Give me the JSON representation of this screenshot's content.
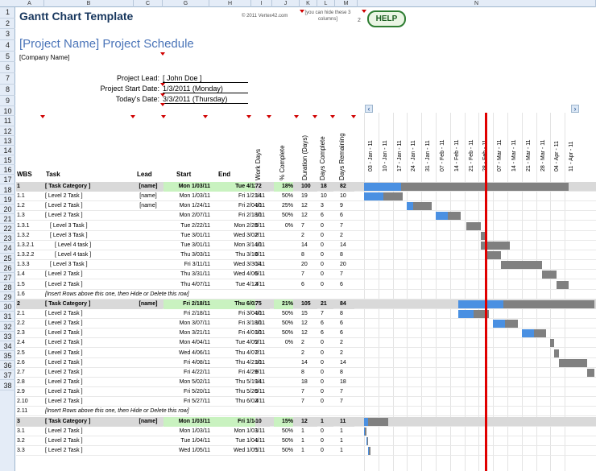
{
  "columns": [
    "A",
    "B",
    "C",
    "G",
    "H",
    "I",
    "J",
    "K",
    "L",
    "M",
    "N"
  ],
  "title": "Gantt Chart Template",
  "copyright": "© 2011 Vertex42.com",
  "hide_note": "[you can hide these 3 columns]",
  "hide_count": "2",
  "help_label": "HELP",
  "project_title": "[Project Name] Project Schedule",
  "company": "[Company Name]",
  "labels": {
    "lead": "Project Lead:",
    "start": "Project Start Date:",
    "today": "Today's Date:"
  },
  "values": {
    "lead": "[ John Doe ]",
    "start": "1/3/2011  (Monday)",
    "today": "3/3/2011  (Thursday)"
  },
  "headers": {
    "wbs": "WBS",
    "task": "Task",
    "lead": "Lead",
    "start": "Start",
    "end": "End",
    "work_days": "Work Days",
    "pct": "% Complete",
    "duration": "Duration (Days)",
    "days_complete": "Days Complete",
    "days_remaining": "Days Remaining"
  },
  "weeks": [
    "03 - Jan - 11",
    "10 - Jan - 11",
    "17 - Jan - 11",
    "24 - Jan - 11",
    "31 - Jan - 11",
    "07 - Feb - 11",
    "14 - Feb - 11",
    "21 - Feb - 11",
    "28 - Feb - 11",
    "07 - Mar - 11",
    "14 - Mar - 11",
    "21 - Mar - 11",
    "28 - Mar - 11",
    "04 - Apr - 11",
    "11 - Apr - 11"
  ],
  "row_numbers": [
    "1",
    "2",
    "3",
    "4",
    "5",
    "6",
    "7",
    "8",
    "9",
    "10",
    "11",
    "12",
    "13",
    "14",
    "15",
    "16",
    "17",
    "18",
    "19",
    "20",
    "21",
    "22",
    "23",
    "24",
    "25",
    "26",
    "27",
    "28",
    "29",
    "30",
    "31",
    "32",
    "33",
    "34",
    "35",
    "36",
    "37",
    "38"
  ],
  "tasks": [
    {
      "wbs": "1",
      "task": "[ Task Category ]",
      "lead": "[name]",
      "start": "Mon 1/03/11",
      "end": "Tue 4/12/11",
      "work": "72",
      "pct": "18%",
      "dur": "100",
      "dc": "18",
      "dr": "82",
      "kind": "cat"
    },
    {
      "wbs": "1.1",
      "task": "[ Level 2 Task ]",
      "lead": "[name]",
      "start": "Mon 1/03/11",
      "end": "Fri 1/21/11",
      "work": "14",
      "pct": "50%",
      "dur": "19",
      "dc": "10",
      "dr": "10",
      "kind": "task"
    },
    {
      "wbs": "1.2",
      "task": "[ Level 2 Task ]",
      "lead": "[name]",
      "start": "Mon 1/24/11",
      "end": "Fri 2/04/11",
      "work": "10",
      "pct": "25%",
      "dur": "12",
      "dc": "3",
      "dr": "9",
      "kind": "task"
    },
    {
      "wbs": "1.3",
      "task": "[ Level 2 Task ]",
      "lead": "",
      "start": "Mon 2/07/11",
      "end": "Fri 2/18/11",
      "work": "10",
      "pct": "50%",
      "dur": "12",
      "dc": "6",
      "dr": "6",
      "kind": "task"
    },
    {
      "wbs": "1.3.1",
      "task": "[ Level 3 Task ]",
      "lead": "",
      "start": "Tue 2/22/11",
      "end": "Mon 2/28/11",
      "work": "5",
      "pct": "0%",
      "dur": "7",
      "dc": "0",
      "dr": "7",
      "kind": "task"
    },
    {
      "wbs": "1.3.2",
      "task": "[ Level 3 Task ]",
      "lead": "",
      "start": "Tue 3/01/11",
      "end": "Wed 3/02/11",
      "work": "2",
      "pct": "",
      "dur": "2",
      "dc": "0",
      "dr": "2",
      "kind": "task"
    },
    {
      "wbs": "1.3.2.1",
      "task": "[ Level 4 task ]",
      "lead": "",
      "start": "Tue 3/01/11",
      "end": "Mon 3/14/11",
      "work": "10",
      "pct": "",
      "dur": "14",
      "dc": "0",
      "dr": "14",
      "kind": "task"
    },
    {
      "wbs": "1.3.2.2",
      "task": "[ Level 4 task ]",
      "lead": "",
      "start": "Thu 3/03/11",
      "end": "Thu 3/10/11",
      "work": "6",
      "pct": "",
      "dur": "8",
      "dc": "0",
      "dr": "8",
      "kind": "task"
    },
    {
      "wbs": "1.3.3",
      "task": "[ Level 3 Task ]",
      "lead": "",
      "start": "Fri 3/11/11",
      "end": "Wed 3/30/11",
      "work": "14",
      "pct": "",
      "dur": "20",
      "dc": "0",
      "dr": "20",
      "kind": "task"
    },
    {
      "wbs": "1.4",
      "task": "[ Level 2 Task ]",
      "lead": "",
      "start": "Thu 3/31/11",
      "end": "Wed 4/06/11",
      "work": "5",
      "pct": "",
      "dur": "7",
      "dc": "0",
      "dr": "7",
      "kind": "task"
    },
    {
      "wbs": "1.5",
      "task": "[ Level 2 Task ]",
      "lead": "",
      "start": "Thu 4/07/11",
      "end": "Tue 4/12/11",
      "work": "4",
      "pct": "",
      "dur": "6",
      "dc": "0",
      "dr": "6",
      "kind": "task"
    },
    {
      "wbs": "1.6",
      "task": "[Insert Rows above this one, then Hide or Delete this row]",
      "lead": "",
      "start": "",
      "end": "",
      "work": "",
      "pct": "",
      "dur": "",
      "dc": "",
      "dr": "",
      "kind": "note"
    },
    {
      "wbs": "2",
      "task": "[ Task Category ]",
      "lead": "[name]",
      "start": "Fri 2/18/11",
      "end": "Thu 6/02/11",
      "work": "75",
      "pct": "21%",
      "dur": "105",
      "dc": "21",
      "dr": "84",
      "kind": "cat"
    },
    {
      "wbs": "2.1",
      "task": "[ Level 2 Task ]",
      "lead": "",
      "start": "Fri 2/18/11",
      "end": "Fri 3/04/11",
      "work": "10",
      "pct": "50%",
      "dur": "15",
      "dc": "7",
      "dr": "8",
      "kind": "task"
    },
    {
      "wbs": "2.2",
      "task": "[ Level 2 Task ]",
      "lead": "",
      "start": "Mon 3/07/11",
      "end": "Fri 3/18/11",
      "work": "10",
      "pct": "50%",
      "dur": "12",
      "dc": "6",
      "dr": "6",
      "kind": "task"
    },
    {
      "wbs": "2.3",
      "task": "[ Level 2 Task ]",
      "lead": "",
      "start": "Mon 3/21/11",
      "end": "Fri 4/01/11",
      "work": "10",
      "pct": "50%",
      "dur": "12",
      "dc": "6",
      "dr": "6",
      "kind": "task"
    },
    {
      "wbs": "2.4",
      "task": "[ Level 2 Task ]",
      "lead": "",
      "start": "Mon 4/04/11",
      "end": "Tue 4/05/11",
      "work": "2",
      "pct": "0%",
      "dur": "2",
      "dc": "0",
      "dr": "2",
      "kind": "task"
    },
    {
      "wbs": "2.5",
      "task": "[ Level 2 Task ]",
      "lead": "",
      "start": "Wed 4/06/11",
      "end": "Thu 4/07/11",
      "work": "2",
      "pct": "",
      "dur": "2",
      "dc": "0",
      "dr": "2",
      "kind": "task"
    },
    {
      "wbs": "2.6",
      "task": "[ Level 2 Task ]",
      "lead": "",
      "start": "Fri 4/08/11",
      "end": "Thu 4/21/11",
      "work": "10",
      "pct": "",
      "dur": "14",
      "dc": "0",
      "dr": "14",
      "kind": "task"
    },
    {
      "wbs": "2.7",
      "task": "[ Level 2 Task ]",
      "lead": "",
      "start": "Fri 4/22/11",
      "end": "Fri 4/29/11",
      "work": "6",
      "pct": "",
      "dur": "8",
      "dc": "0",
      "dr": "8",
      "kind": "task"
    },
    {
      "wbs": "2.8",
      "task": "[ Level 2 Task ]",
      "lead": "",
      "start": "Mon 5/02/11",
      "end": "Thu 5/19/11",
      "work": "14",
      "pct": "",
      "dur": "18",
      "dc": "0",
      "dr": "18",
      "kind": "task"
    },
    {
      "wbs": "2.9",
      "task": "[ Level 2 Task ]",
      "lead": "",
      "start": "Fri 5/20/11",
      "end": "Thu 5/26/11",
      "work": "5",
      "pct": "",
      "dur": "7",
      "dc": "0",
      "dr": "7",
      "kind": "task"
    },
    {
      "wbs": "2.10",
      "task": "[ Level 2 Task ]",
      "lead": "",
      "start": "Fri 5/27/11",
      "end": "Thu 6/02/11",
      "work": "4",
      "pct": "",
      "dur": "7",
      "dc": "0",
      "dr": "7",
      "kind": "task"
    },
    {
      "wbs": "2.11",
      "task": "[Insert Rows above this one, then Hide or Delete this row]",
      "lead": "",
      "start": "",
      "end": "",
      "work": "",
      "pct": "",
      "dur": "",
      "dc": "",
      "dr": "",
      "kind": "note"
    },
    {
      "wbs": "3",
      "task": "[ Task Category ]",
      "lead": "[name]",
      "start": "Mon 1/03/11",
      "end": "Fri 1/14/11",
      "work": "10",
      "pct": "15%",
      "dur": "12",
      "dc": "1",
      "dr": "11",
      "kind": "cat"
    },
    {
      "wbs": "3.1",
      "task": "[ Level 2 Task ]",
      "lead": "",
      "start": "Mon 1/03/11",
      "end": "Mon 1/03/11",
      "work": "1",
      "pct": "50%",
      "dur": "1",
      "dc": "0",
      "dr": "1",
      "kind": "task"
    },
    {
      "wbs": "3.2",
      "task": "[ Level 2 Task ]",
      "lead": "",
      "start": "Tue 1/04/11",
      "end": "Tue 1/04/11",
      "work": "1",
      "pct": "50%",
      "dur": "1",
      "dc": "0",
      "dr": "1",
      "kind": "task"
    },
    {
      "wbs": "3.3",
      "task": "[ Level 2 Task ]",
      "lead": "",
      "start": "Wed 1/05/11",
      "end": "Wed 1/05/11",
      "work": "1",
      "pct": "50%",
      "dur": "1",
      "dc": "0",
      "dr": "1",
      "kind": "task"
    }
  ],
  "gantt": {
    "project_start": "2011-01-03",
    "today": "2011-03-03",
    "done_color": "#4a90e2",
    "remaining_color": "#808080",
    "today_line_color": "#e00000"
  }
}
